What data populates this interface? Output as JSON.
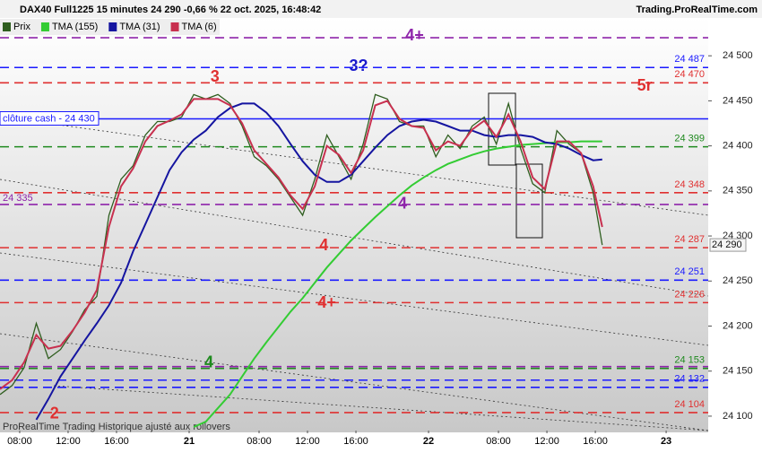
{
  "header": {
    "title": "DAX40 Full1225 15 minutes 24 290 -0,66 % 22 oct. 2025, 16:48:42",
    "site": "Trading.ProRealTime.com"
  },
  "footer": "ProRealTime Trading  Historique ajusté aux rollovers",
  "chart_data": {
    "type": "line",
    "x": [
      0,
      4,
      8,
      12,
      16,
      20,
      24,
      28,
      32,
      36,
      40,
      44,
      48,
      52,
      56,
      60,
      64,
      68,
      72,
      76,
      80,
      84,
      88,
      92,
      96,
      100,
      104,
      108,
      112,
      116,
      120,
      124,
      128,
      132,
      136,
      140,
      144,
      148,
      152,
      156,
      160,
      164,
      168,
      172,
      176,
      180,
      184,
      188,
      192,
      196,
      199
    ],
    "xlim": [
      0,
      234
    ],
    "xticks": [
      {
        "value": 6.5,
        "label": "08:00"
      },
      {
        "value": 22.5,
        "label": "12:00"
      },
      {
        "value": 38.5,
        "label": "16:00"
      },
      {
        "value": 62.5,
        "label": "21"
      },
      {
        "value": 85.6,
        "label": "08:00"
      },
      {
        "value": 101.6,
        "label": "12:00"
      },
      {
        "value": 117.6,
        "label": "16:00"
      },
      {
        "value": 141.6,
        "label": "22"
      },
      {
        "value": 164.7,
        "label": "08:00"
      },
      {
        "value": 180.7,
        "label": "12:00"
      },
      {
        "value": 196.7,
        "label": "16:00"
      },
      {
        "value": 220.1,
        "label": "23"
      }
    ],
    "ylim": [
      24084,
      24544
    ],
    "yticks": [
      {
        "value": 24100,
        "label": "24 100"
      },
      {
        "value": 24150,
        "label": "24 150"
      },
      {
        "value": 24200,
        "label": "24 200"
      },
      {
        "value": 24250,
        "label": "24 250"
      },
      {
        "value": 24300,
        "label": "24 300"
      },
      {
        "value": 24350,
        "label": "24 350"
      },
      {
        "value": 24400,
        "label": "24 400"
      },
      {
        "value": 24450,
        "label": "24 450"
      },
      {
        "value": 24500,
        "label": "24 500"
      }
    ],
    "series": [
      {
        "name": "Prix",
        "color": "#2f5e1f",
        "values": [
          24124,
          24134,
          24154,
          24203,
          24164,
          24174,
          24194,
          24218,
          24233,
          24323,
          24363,
          24378,
          24412,
          24427,
          24427,
          24432,
          24457,
          24452,
          24457,
          24447,
          24422,
          24388,
          24378,
          24363,
          24343,
          24323,
          24363,
          24412,
          24388,
          24363,
          24402,
          24457,
          24452,
          24427,
          24422,
          24422,
          24388,
          24412,
          24397,
          24422,
          24432,
          24402,
          24447,
          24397,
          24358,
          24348,
          24417,
          24402,
          24392,
          24348,
          24290
        ]
      },
      {
        "name": "TMA (155)",
        "color": "#33cc33",
        "values": [
          null,
          null,
          null,
          null,
          null,
          null,
          null,
          null,
          null,
          null,
          null,
          null,
          null,
          null,
          null,
          null,
          24088,
          24094,
          24109,
          24124,
          24144,
          24164,
          24182,
          24199,
          24216,
          24231,
          24248,
          24265,
          24280,
          24295,
          24308,
          24321,
          24333,
          24345,
          24356,
          24365,
          24373,
          24380,
          24385,
          24390,
          24394,
          24397,
          24399,
          24401,
          24402,
          24403,
          24404,
          24404,
          24405,
          24405,
          24405
        ]
      },
      {
        "name": "TMA (31)",
        "color": "#1515a0",
        "values": [
          null,
          null,
          null,
          24096,
          24119,
          24144,
          24164,
          24184,
          24203,
          24223,
          24248,
          24283,
          24313,
          24343,
          24373,
          24393,
          24407,
          24417,
          24432,
          24442,
          24447,
          24447,
          24437,
          24422,
          24402,
          24383,
          24368,
          24360,
          24360,
          24368,
          24383,
          24398,
          24412,
          24422,
          24427,
          24429,
          24427,
          24422,
          24417,
          24417,
          24412,
          24410,
          24412,
          24412,
          24410,
          24404,
          24402,
          24397,
          24390,
          24384,
          24385
        ]
      },
      {
        "name": "TMA (6)",
        "color": "#c8304f",
        "values": [
          24130,
          24140,
          24160,
          24190,
          24175,
          24178,
          24195,
          24215,
          24240,
          24310,
          24355,
          24375,
          24405,
          24422,
          24428,
          24435,
          24452,
          24452,
          24452,
          24445,
          24425,
          24395,
          24380,
          24365,
          24345,
          24330,
          24355,
          24400,
          24390,
          24370,
          24395,
          24445,
          24450,
          24430,
          24422,
          24420,
          24395,
          24405,
          24400,
          24418,
          24428,
          24410,
          24435,
          24405,
          24365,
          24352,
          24405,
          24405,
          24392,
          24355,
          24310
        ]
      }
    ],
    "levels": [
      {
        "value": 24520,
        "color": "#8e24aa",
        "style": "dash"
      },
      {
        "value": 24487,
        "color": "#1a1aff",
        "style": "dash",
        "label": "24 487"
      },
      {
        "value": 24470,
        "color": "#e03030",
        "style": "dash",
        "label": "24 470"
      },
      {
        "value": 24430,
        "color": "#1a1aff",
        "style": "solid",
        "label": "clôture cash - 24 430",
        "side": "left"
      },
      {
        "value": 24399,
        "color": "#1f8a1f",
        "style": "dash",
        "label": "24 399"
      },
      {
        "value": 24348,
        "color": "#e03030",
        "style": "dash",
        "label": "24 348"
      },
      {
        "value": 24335,
        "color": "#8e24aa",
        "style": "dash",
        "label": "24 335",
        "side": "left"
      },
      {
        "value": 24287,
        "color": "#e03030",
        "style": "dash",
        "label": "24 287"
      },
      {
        "value": 24251,
        "color": "#1a1aff",
        "style": "dash",
        "label": "24 251"
      },
      {
        "value": 24226,
        "color": "#e03030",
        "style": "dash",
        "label": "24 226"
      },
      {
        "value": 24155,
        "color": "#8e24aa",
        "style": "dash"
      },
      {
        "value": 24153,
        "color": "#1f8a1f",
        "style": "dash",
        "label": "24 153"
      },
      {
        "value": 24140,
        "color": "#1a1aff",
        "style": "dash"
      },
      {
        "value": 24132,
        "color": "#1a1aff",
        "style": "dash",
        "label": "24 132"
      },
      {
        "value": 24104,
        "color": "#e03030",
        "style": "dash",
        "label": "24 104"
      }
    ],
    "last_price": {
      "value": 24290,
      "label": "24 290"
    },
    "annotations": [
      {
        "text": "4+",
        "x": 137,
        "y": 24522,
        "color": "#8e24aa"
      },
      {
        "text": "3?",
        "x": 118.5,
        "y": 24488,
        "color": "#1a1acc"
      },
      {
        "text": "3",
        "x": 71,
        "y": 24476,
        "color": "#e03030"
      },
      {
        "text": "5r",
        "x": 213,
        "y": 24466,
        "color": "#e03030"
      },
      {
        "text": "4",
        "x": 133,
        "y": 24335,
        "color": "#8e24aa"
      },
      {
        "text": "4",
        "x": 107,
        "y": 24289,
        "color": "#e03030"
      },
      {
        "text": "4+",
        "x": 108,
        "y": 24225,
        "color": "#e03030"
      },
      {
        "text": "4",
        "x": 69,
        "y": 24159,
        "color": "#1f8a1f"
      },
      {
        "text": "2",
        "x": 18,
        "y": 24102,
        "color": "#e03030"
      }
    ]
  }
}
